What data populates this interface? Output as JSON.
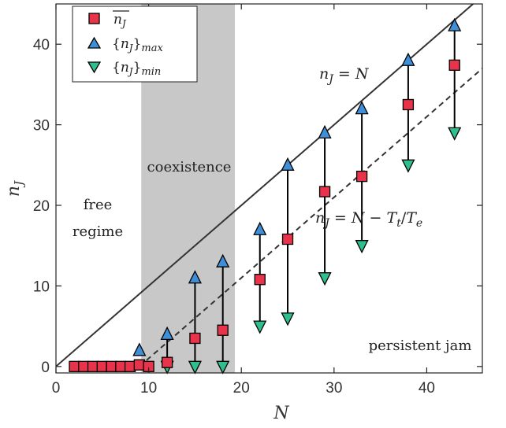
{
  "chart_data": {
    "type": "scatter",
    "xlabel": "N",
    "ylabel": "n_J",
    "xlim": [
      0,
      46
    ],
    "ylim": [
      -0.8,
      45
    ],
    "x_ticks": [
      0,
      10,
      20,
      30,
      40
    ],
    "y_ticks": [
      0,
      10,
      20,
      30,
      40
    ],
    "grid": false,
    "legend_position": "top-left",
    "series": [
      {
        "name": "mean n_J",
        "label": "n̄J",
        "marker": "square",
        "color": "#e8334a",
        "points": [
          [
            2,
            0
          ],
          [
            3,
            0
          ],
          [
            4,
            0
          ],
          [
            5,
            0
          ],
          [
            6,
            0
          ],
          [
            7,
            0
          ],
          [
            8,
            0
          ],
          [
            9,
            0.2
          ],
          [
            10,
            0
          ],
          [
            12,
            0.5
          ],
          [
            15,
            3.5
          ],
          [
            18,
            4.5
          ],
          [
            22,
            10.8
          ],
          [
            25,
            15.8
          ],
          [
            29,
            21.7
          ],
          [
            33,
            23.6
          ],
          [
            38,
            32.5
          ],
          [
            43,
            37.4
          ]
        ]
      },
      {
        "name": "{n_J}_max",
        "label": "{nJ}max",
        "marker": "triangle-up",
        "color": "#3f8fd8",
        "points": [
          [
            9,
            2
          ],
          [
            12,
            4
          ],
          [
            15,
            11
          ],
          [
            18,
            13
          ],
          [
            22,
            17
          ],
          [
            25,
            25
          ],
          [
            29,
            29
          ],
          [
            33,
            32
          ],
          [
            38,
            38
          ],
          [
            43,
            42.3
          ]
        ]
      },
      {
        "name": "{n_J}_min",
        "label": "{nJ}min",
        "marker": "triangle-down",
        "color": "#2fbf8c",
        "points": [
          [
            12,
            0
          ],
          [
            15,
            0
          ],
          [
            18,
            0
          ],
          [
            22,
            5
          ],
          [
            25,
            6
          ],
          [
            29,
            11
          ],
          [
            33,
            15
          ],
          [
            38,
            25
          ],
          [
            43,
            29
          ]
        ]
      }
    ],
    "range_bars": [
      {
        "x": 12,
        "low": 0,
        "high": 4
      },
      {
        "x": 15,
        "low": 0,
        "high": 11
      },
      {
        "x": 18,
        "low": 0,
        "high": 13
      },
      {
        "x": 22,
        "low": 5,
        "high": 17
      },
      {
        "x": 25,
        "low": 6,
        "high": 25
      },
      {
        "x": 29,
        "low": 11,
        "high": 29
      },
      {
        "x": 33,
        "low": 15,
        "high": 32
      },
      {
        "x": 38,
        "low": 25,
        "high": 38
      },
      {
        "x": 43,
        "low": 29,
        "high": 42.3
      }
    ],
    "lines": [
      {
        "label": "n_J = N",
        "style": "solid",
        "points": [
          [
            0,
            0
          ],
          [
            46,
            46
          ]
        ]
      },
      {
        "label": "n_J = N − T_t/T_e",
        "style": "dashed",
        "points": [
          [
            9,
            0
          ],
          [
            46,
            37
          ]
        ]
      }
    ],
    "shaded_region": {
      "label": "coexistence",
      "x_start": 9.2,
      "x_end": 19.3,
      "color": "#c8c8c8"
    },
    "annotations": {
      "free_line1": "free",
      "free_line2": "regime",
      "coexistence": "coexistence",
      "persistent": "persistent jam",
      "line1": "nJ = N",
      "line2": "nJ = N − Tt/Te"
    }
  }
}
